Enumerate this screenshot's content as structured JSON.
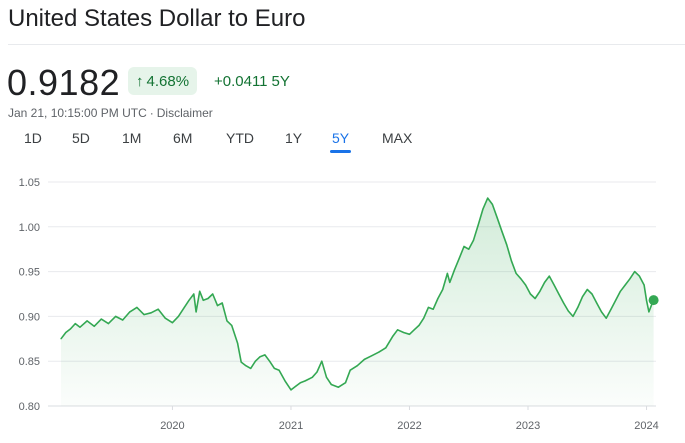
{
  "header": {
    "title": "United States Dollar to Euro"
  },
  "quote": {
    "price": "0.9182",
    "percent_change": "4.68%",
    "percent_direction": "up",
    "abs_change": "+0.0411",
    "abs_period": "5Y",
    "timestamp": "Jan 21, 10:15:00 PM UTC",
    "separator": "·",
    "disclaimer": "Disclaimer"
  },
  "tabs": [
    {
      "label": "1D",
      "active": false
    },
    {
      "label": "5D",
      "active": false
    },
    {
      "label": "1M",
      "active": false
    },
    {
      "label": "6M",
      "active": false
    },
    {
      "label": "YTD",
      "active": false
    },
    {
      "label": "1Y",
      "active": false
    },
    {
      "label": "5Y",
      "active": true
    },
    {
      "label": "MAX",
      "active": false
    }
  ],
  "colors": {
    "positive": "#137333",
    "line": "#34a853",
    "accent": "#1a73e8"
  },
  "chart_data": {
    "type": "area",
    "series": [
      {
        "values": [
          [
            2019.06,
            0.875
          ],
          [
            2019.1,
            0.882
          ],
          [
            2019.14,
            0.886
          ],
          [
            2019.18,
            0.892
          ],
          [
            2019.22,
            0.888
          ],
          [
            2019.28,
            0.895
          ],
          [
            2019.34,
            0.889
          ],
          [
            2019.4,
            0.897
          ],
          [
            2019.46,
            0.892
          ],
          [
            2019.52,
            0.9
          ],
          [
            2019.58,
            0.896
          ],
          [
            2019.64,
            0.905
          ],
          [
            2019.7,
            0.91
          ],
          [
            2019.76,
            0.902
          ],
          [
            2019.82,
            0.904
          ],
          [
            2019.88,
            0.908
          ],
          [
            2019.94,
            0.898
          ],
          [
            2020.0,
            0.893
          ],
          [
            2020.05,
            0.9
          ],
          [
            2020.1,
            0.91
          ],
          [
            2020.14,
            0.918
          ],
          [
            2020.18,
            0.925
          ],
          [
            2020.2,
            0.905
          ],
          [
            2020.23,
            0.928
          ],
          [
            2020.26,
            0.918
          ],
          [
            2020.3,
            0.92
          ],
          [
            2020.34,
            0.925
          ],
          [
            2020.38,
            0.912
          ],
          [
            2020.42,
            0.915
          ],
          [
            2020.46,
            0.895
          ],
          [
            2020.5,
            0.89
          ],
          [
            2020.55,
            0.87
          ],
          [
            2020.58,
            0.849
          ],
          [
            2020.62,
            0.845
          ],
          [
            2020.66,
            0.842
          ],
          [
            2020.7,
            0.85
          ],
          [
            2020.74,
            0.855
          ],
          [
            2020.78,
            0.857
          ],
          [
            2020.82,
            0.85
          ],
          [
            2020.86,
            0.842
          ],
          [
            2020.9,
            0.84
          ],
          [
            2020.95,
            0.828
          ],
          [
            2021.0,
            0.818
          ],
          [
            2021.04,
            0.822
          ],
          [
            2021.08,
            0.826
          ],
          [
            2021.12,
            0.828
          ],
          [
            2021.18,
            0.832
          ],
          [
            2021.22,
            0.838
          ],
          [
            2021.26,
            0.85
          ],
          [
            2021.3,
            0.832
          ],
          [
            2021.34,
            0.824
          ],
          [
            2021.4,
            0.821
          ],
          [
            2021.46,
            0.826
          ],
          [
            2021.5,
            0.84
          ],
          [
            2021.56,
            0.845
          ],
          [
            2021.62,
            0.852
          ],
          [
            2021.68,
            0.856
          ],
          [
            2021.74,
            0.86
          ],
          [
            2021.8,
            0.865
          ],
          [
            2021.86,
            0.878
          ],
          [
            2021.9,
            0.885
          ],
          [
            2021.95,
            0.882
          ],
          [
            2022.0,
            0.88
          ],
          [
            2022.04,
            0.885
          ],
          [
            2022.08,
            0.89
          ],
          [
            2022.12,
            0.898
          ],
          [
            2022.16,
            0.91
          ],
          [
            2022.2,
            0.908
          ],
          [
            2022.24,
            0.92
          ],
          [
            2022.28,
            0.93
          ],
          [
            2022.32,
            0.948
          ],
          [
            2022.34,
            0.938
          ],
          [
            2022.38,
            0.952
          ],
          [
            2022.42,
            0.965
          ],
          [
            2022.46,
            0.978
          ],
          [
            2022.5,
            0.975
          ],
          [
            2022.54,
            0.985
          ],
          [
            2022.58,
            1.002
          ],
          [
            2022.62,
            1.02
          ],
          [
            2022.66,
            1.032
          ],
          [
            2022.7,
            1.025
          ],
          [
            2022.74,
            1.01
          ],
          [
            2022.78,
            0.995
          ],
          [
            2022.82,
            0.98
          ],
          [
            2022.86,
            0.962
          ],
          [
            2022.9,
            0.948
          ],
          [
            2022.94,
            0.942
          ],
          [
            2022.98,
            0.935
          ],
          [
            2023.02,
            0.925
          ],
          [
            2023.06,
            0.92
          ],
          [
            2023.1,
            0.928
          ],
          [
            2023.14,
            0.938
          ],
          [
            2023.18,
            0.945
          ],
          [
            2023.22,
            0.935
          ],
          [
            2023.26,
            0.925
          ],
          [
            2023.3,
            0.915
          ],
          [
            2023.34,
            0.906
          ],
          [
            2023.38,
            0.9
          ],
          [
            2023.42,
            0.91
          ],
          [
            2023.46,
            0.922
          ],
          [
            2023.5,
            0.93
          ],
          [
            2023.54,
            0.925
          ],
          [
            2023.58,
            0.915
          ],
          [
            2023.62,
            0.905
          ],
          [
            2023.66,
            0.898
          ],
          [
            2023.7,
            0.908
          ],
          [
            2023.74,
            0.918
          ],
          [
            2023.78,
            0.928
          ],
          [
            2023.82,
            0.935
          ],
          [
            2023.86,
            0.942
          ],
          [
            2023.9,
            0.95
          ],
          [
            2023.94,
            0.945
          ],
          [
            2023.98,
            0.935
          ],
          [
            2024.0,
            0.918
          ],
          [
            2024.02,
            0.905
          ],
          [
            2024.04,
            0.912
          ],
          [
            2024.06,
            0.918
          ]
        ]
      }
    ],
    "xlabel": "",
    "ylabel": "",
    "x_ticks": [
      {
        "value": 2020.0,
        "label": "2020"
      },
      {
        "value": 2021.0,
        "label": "2021"
      },
      {
        "value": 2022.0,
        "label": "2022"
      },
      {
        "value": 2023.0,
        "label": "2023"
      },
      {
        "value": 2024.0,
        "label": "2024"
      }
    ],
    "y_ticks": [
      {
        "value": 0.8,
        "label": "0.80"
      },
      {
        "value": 0.85,
        "label": "0.85"
      },
      {
        "value": 0.9,
        "label": "0.90"
      },
      {
        "value": 0.95,
        "label": "0.95"
      },
      {
        "value": 1.0,
        "label": "1.00"
      },
      {
        "value": 1.05,
        "label": "1.05"
      }
    ],
    "xlim": [
      2018.95,
      2024.08
    ],
    "ylim": [
      0.8,
      1.05
    ],
    "grid": true,
    "current_value": 0.9182
  }
}
